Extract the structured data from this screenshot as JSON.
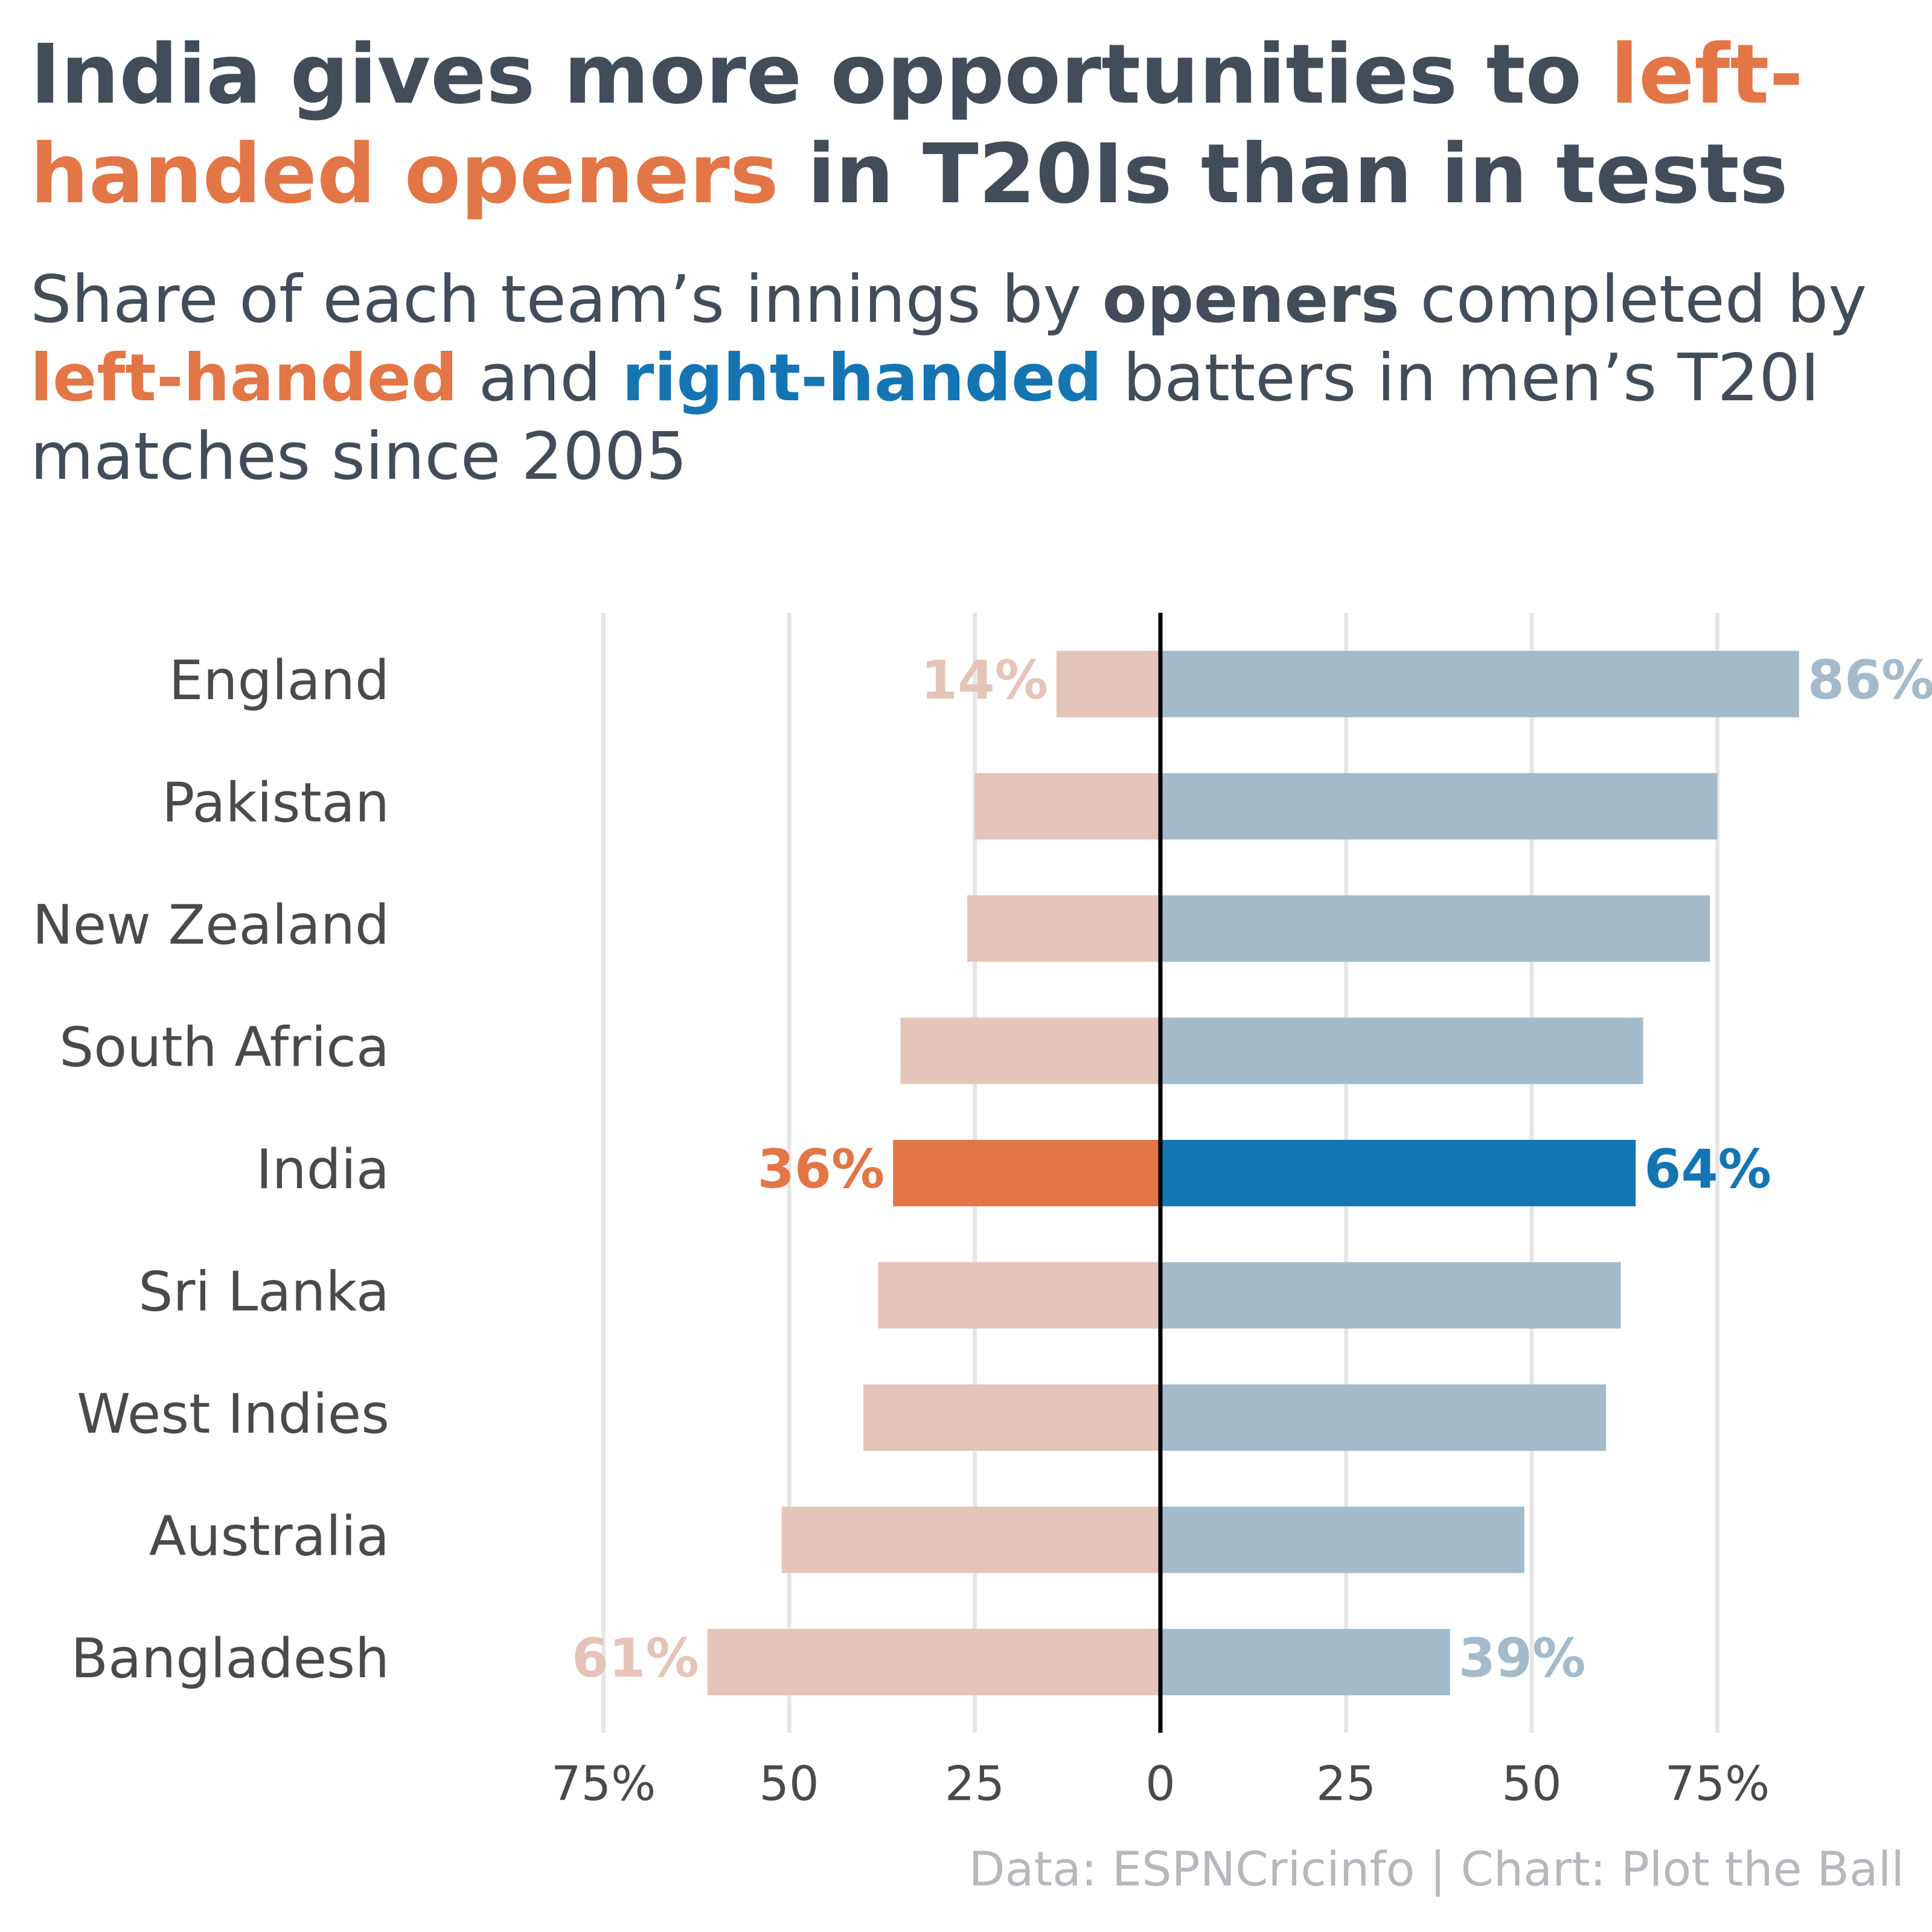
{
  "title": {
    "part1": "India gives more opportunities to ",
    "part2": "left-handed openers",
    "part3": " in T20Is than in tests"
  },
  "subtitle": {
    "part1": "Share of each team’s innings by ",
    "part2": "openers",
    "part3": " completed by ",
    "part4": "left-handed",
    "part5": " and ",
    "part6": "right-handed",
    "part7": " batters in men’s T20I matches since 2005"
  },
  "caption": "Data: ESPNCricinfo | Chart: Plot the Ball",
  "colors": {
    "text": "#434c59",
    "left_highlight": "#e37647",
    "right_highlight": "#1575b3",
    "left_muted": "#e5c4b9",
    "right_muted": "#a3bbca",
    "axis": "#000000",
    "grid": "#e6e6e6",
    "caption": "#b5b8bd"
  },
  "chart_data": {
    "type": "bar",
    "orientation": "horizontal-diverging",
    "categories": [
      "England",
      "Pakistan",
      "New Zealand",
      "South Africa",
      "India",
      "Sri Lanka",
      "West Indies",
      "Australia",
      "Bangladesh"
    ],
    "series": [
      {
        "name": "left-handed",
        "values": [
          14,
          25,
          26,
          35,
          36,
          38,
          40,
          51,
          61
        ]
      },
      {
        "name": "right-handed",
        "values": [
          86,
          75,
          74,
          65,
          64,
          62,
          60,
          49,
          39
        ]
      }
    ],
    "highlight_category": "India",
    "data_labels": [
      {
        "category": "England",
        "series": "left-handed",
        "text": "14%"
      },
      {
        "category": "England",
        "series": "right-handed",
        "text": "86%"
      },
      {
        "category": "India",
        "series": "left-handed",
        "text": "36%"
      },
      {
        "category": "India",
        "series": "right-handed",
        "text": "64%"
      },
      {
        "category": "Bangladesh",
        "series": "left-handed",
        "text": "61%"
      },
      {
        "category": "Bangladesh",
        "series": "right-handed",
        "text": "39%"
      }
    ],
    "x_ticks": [
      {
        "value": -75,
        "label": "75%"
      },
      {
        "value": -50,
        "label": "50"
      },
      {
        "value": -25,
        "label": "25"
      },
      {
        "value": 0,
        "label": "0"
      },
      {
        "value": 25,
        "label": "25"
      },
      {
        "value": 50,
        "label": "50"
      },
      {
        "value": 75,
        "label": "75%"
      }
    ],
    "xlim": [
      -75,
      75
    ],
    "grid": true,
    "legend": "none"
  }
}
